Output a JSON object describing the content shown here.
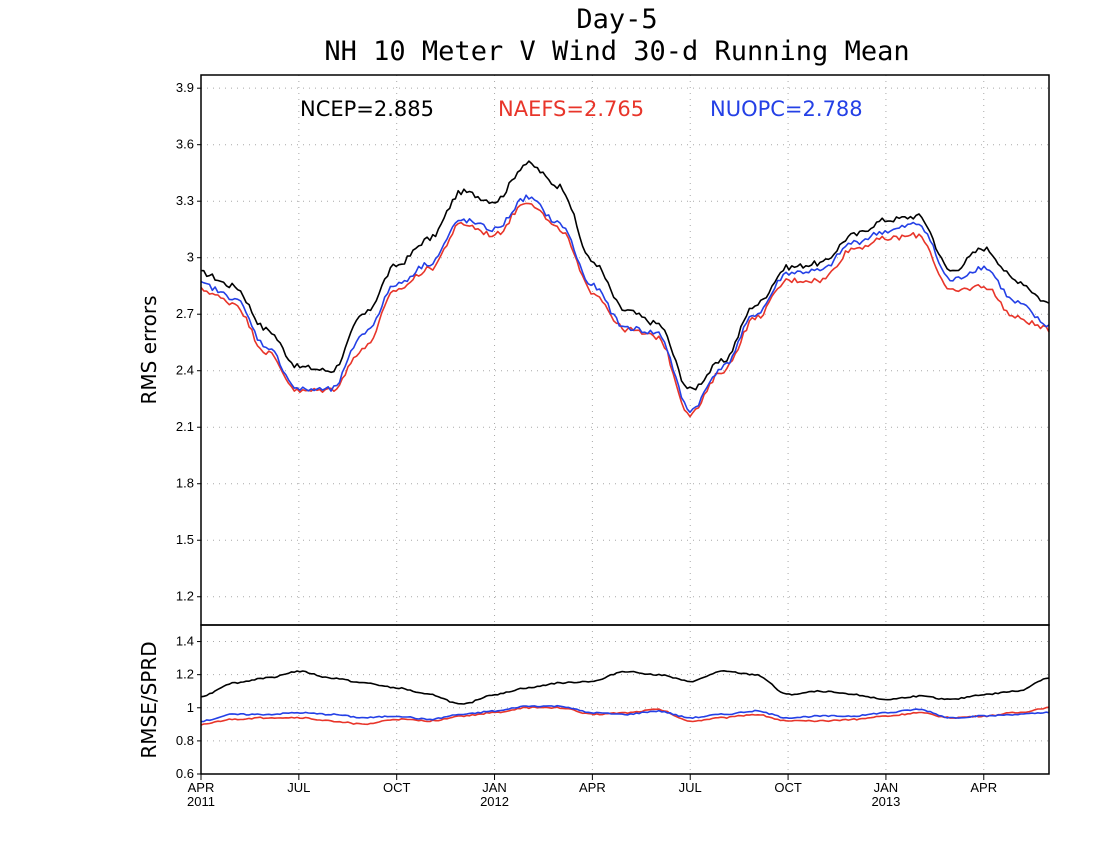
{
  "chart_data": [
    {
      "type": "line",
      "title": "Day-5",
      "subtitle": "NH 10 Meter V Wind 30-d Running Mean",
      "ylabel": "RMS errors",
      "ylim": [
        1.05,
        3.97
      ],
      "yticks": [
        "1.2",
        "1.5",
        "1.8",
        "2.1",
        "2.4",
        "2.7",
        "3",
        "3.3",
        "3.6",
        "3.9"
      ],
      "grid": true,
      "stats": [
        {
          "text": "NCEP=2.885",
          "color": "#000000"
        },
        {
          "text": "NAEFS=2.765",
          "color": "#e8352a"
        },
        {
          "text": "NUOPC=2.788",
          "color": "#2440e6"
        }
      ],
      "x": [
        "2011-04",
        "2011-05",
        "2011-06",
        "2011-07",
        "2011-08",
        "2011-09",
        "2011-10",
        "2011-11",
        "2011-12",
        "2012-01",
        "2012-02",
        "2012-03",
        "2012-04",
        "2012-05",
        "2012-06",
        "2012-07",
        "2012-08",
        "2012-09",
        "2012-10",
        "2012-11",
        "2012-12",
        "2013-01",
        "2013-02",
        "2013-03",
        "2013-04",
        "2013-05",
        "2013-06"
      ],
      "series": [
        {
          "name": "NCEP",
          "color": "#000000",
          "values": [
            2.92,
            2.85,
            2.62,
            2.42,
            2.4,
            2.7,
            2.96,
            3.1,
            3.35,
            3.3,
            3.5,
            3.38,
            2.98,
            2.72,
            2.65,
            2.3,
            2.45,
            2.75,
            2.95,
            2.97,
            3.12,
            3.2,
            3.22,
            2.93,
            3.05,
            2.88,
            2.76
          ]
        },
        {
          "name": "NAEFS",
          "color": "#e8352a",
          "values": [
            2.83,
            2.76,
            2.5,
            2.29,
            2.3,
            2.52,
            2.83,
            2.94,
            3.18,
            3.12,
            3.3,
            3.15,
            2.82,
            2.62,
            2.58,
            2.17,
            2.4,
            2.68,
            2.88,
            2.88,
            3.05,
            3.1,
            3.12,
            2.82,
            2.85,
            2.68,
            2.62
          ]
        },
        {
          "name": "NUOPC",
          "color": "#2440e6",
          "values": [
            2.86,
            2.79,
            2.53,
            2.3,
            2.3,
            2.6,
            2.86,
            2.97,
            3.2,
            3.15,
            3.32,
            3.18,
            2.85,
            2.63,
            2.6,
            2.19,
            2.42,
            2.7,
            2.92,
            2.93,
            3.08,
            3.14,
            3.18,
            2.88,
            2.95,
            2.76,
            2.64
          ]
        }
      ]
    },
    {
      "type": "line",
      "ylabel": "RMSE/SPRD",
      "ylim": [
        0.6,
        1.5
      ],
      "yticks": [
        "0.6",
        "0.8",
        "1",
        "1.2",
        "1.4"
      ],
      "grid": true,
      "x": [
        "2011-04",
        "2011-05",
        "2011-06",
        "2011-07",
        "2011-08",
        "2011-09",
        "2011-10",
        "2011-11",
        "2011-12",
        "2012-01",
        "2012-02",
        "2012-03",
        "2012-04",
        "2012-05",
        "2012-06",
        "2012-07",
        "2012-08",
        "2012-09",
        "2012-10",
        "2012-11",
        "2012-12",
        "2013-01",
        "2013-02",
        "2013-03",
        "2013-04",
        "2013-05",
        "2013-06"
      ],
      "series": [
        {
          "name": "NCEP",
          "color": "#000000",
          "values": [
            1.07,
            1.15,
            1.18,
            1.22,
            1.18,
            1.15,
            1.12,
            1.08,
            1.02,
            1.08,
            1.12,
            1.15,
            1.16,
            1.22,
            1.2,
            1.16,
            1.22,
            1.2,
            1.08,
            1.1,
            1.08,
            1.05,
            1.07,
            1.05,
            1.08,
            1.1,
            1.18
          ]
        },
        {
          "name": "NAEFS",
          "color": "#e8352a",
          "values": [
            0.9,
            0.93,
            0.94,
            0.94,
            0.92,
            0.9,
            0.93,
            0.92,
            0.95,
            0.97,
            1.0,
            1.0,
            0.96,
            0.97,
            0.99,
            0.92,
            0.94,
            0.96,
            0.92,
            0.92,
            0.93,
            0.95,
            0.97,
            0.94,
            0.95,
            0.97,
            1.0
          ]
        },
        {
          "name": "NUOPC",
          "color": "#2440e6",
          "values": [
            0.92,
            0.96,
            0.96,
            0.97,
            0.96,
            0.94,
            0.95,
            0.93,
            0.96,
            0.98,
            1.01,
            1.01,
            0.97,
            0.96,
            0.98,
            0.94,
            0.96,
            0.98,
            0.94,
            0.95,
            0.95,
            0.97,
            0.99,
            0.94,
            0.95,
            0.96,
            0.97
          ]
        }
      ]
    }
  ],
  "xaxis": {
    "ticks": [
      {
        "label": "APR",
        "sub": "2011"
      },
      {
        "label": "JUL",
        "sub": ""
      },
      {
        "label": "OCT",
        "sub": ""
      },
      {
        "label": "JAN",
        "sub": "2012"
      },
      {
        "label": "APR",
        "sub": ""
      },
      {
        "label": "JUL",
        "sub": ""
      },
      {
        "label": "OCT",
        "sub": ""
      },
      {
        "label": "JAN",
        "sub": "2013"
      },
      {
        "label": "APR",
        "sub": ""
      }
    ]
  }
}
